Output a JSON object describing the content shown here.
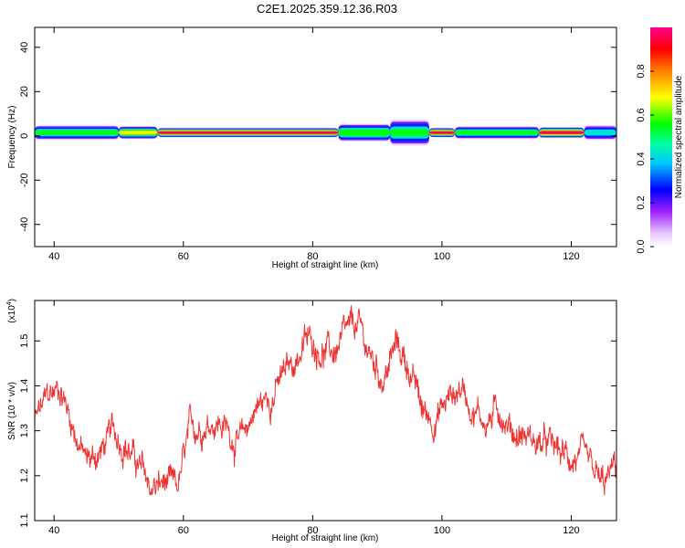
{
  "title": "C2E1.2025.359.12.36.R03",
  "chart_data": [
    {
      "type": "heatmap",
      "xlabel": "Height of straight line (km)",
      "ylabel": "Frequency (Hz)",
      "xlim": [
        37,
        127
      ],
      "ylim": [
        -50,
        49
      ],
      "xticks": [
        40,
        60,
        80,
        100,
        120
      ],
      "yticks": [
        40,
        20,
        0,
        -20,
        -40
      ],
      "band": {
        "center_hz": 1.5,
        "segments": [
          {
            "x0": 37,
            "x1": 50,
            "core": 0.6,
            "width_hz": 2.5
          },
          {
            "x0": 50,
            "x1": 56,
            "core": 0.75,
            "width_hz": 2.2
          },
          {
            "x0": 56,
            "x1": 84,
            "core": 0.95,
            "width_hz": 1.6
          },
          {
            "x0": 84,
            "x1": 92,
            "core": 0.65,
            "width_hz": 3.0
          },
          {
            "x0": 92,
            "x1": 98,
            "core": 0.55,
            "width_hz": 4.5
          },
          {
            "x0": 98,
            "x1": 102,
            "core": 0.95,
            "width_hz": 1.6
          },
          {
            "x0": 102,
            "x1": 115,
            "core": 0.6,
            "width_hz": 2.2
          },
          {
            "x0": 115,
            "x1": 122,
            "core": 0.95,
            "width_hz": 1.8
          },
          {
            "x0": 122,
            "x1": 127,
            "core": 0.5,
            "width_hz": 2.6
          }
        ]
      },
      "colorbar": {
        "label": "Normalized spectral amplitude",
        "ticks": [
          "0.0",
          "0.2",
          "0.4",
          "0.6",
          "0.8"
        ],
        "range": [
          0,
          1
        ]
      }
    },
    {
      "type": "line",
      "xlabel": "Height of straight line (km)",
      "ylabel": "SNR (10 * v/v)",
      "ylabel_multiplier": "(x10",
      "ylabel_exponent": "4",
      "xlim": [
        37,
        127
      ],
      "ylim": [
        1.1,
        1.59
      ],
      "xticks": [
        40,
        60,
        80,
        100,
        120
      ],
      "yticks": [
        "1.1",
        "1.2",
        "1.3",
        "1.4",
        "1.5"
      ],
      "color": "#ee3333",
      "series_trend": {
        "x": [
          37,
          39,
          41,
          43,
          45,
          47,
          49,
          51,
          53,
          55,
          57,
          59,
          61,
          63,
          65,
          67,
          69,
          71,
          73,
          75,
          77,
          79,
          81,
          83,
          85,
          87,
          89,
          91,
          93,
          95,
          97,
          99,
          101,
          103,
          105,
          107,
          109,
          111,
          113,
          115,
          117,
          119,
          121,
          123,
          125,
          127
        ],
        "y": [
          1.32,
          1.37,
          1.4,
          1.31,
          1.23,
          1.25,
          1.29,
          1.28,
          1.22,
          1.17,
          1.18,
          1.16,
          1.29,
          1.32,
          1.33,
          1.3,
          1.27,
          1.35,
          1.37,
          1.41,
          1.45,
          1.5,
          1.49,
          1.47,
          1.5,
          1.53,
          1.46,
          1.42,
          1.49,
          1.44,
          1.34,
          1.33,
          1.37,
          1.4,
          1.35,
          1.32,
          1.35,
          1.3,
          1.29,
          1.27,
          1.26,
          1.24,
          1.24,
          1.2,
          1.17,
          1.22
        ]
      }
    }
  ]
}
